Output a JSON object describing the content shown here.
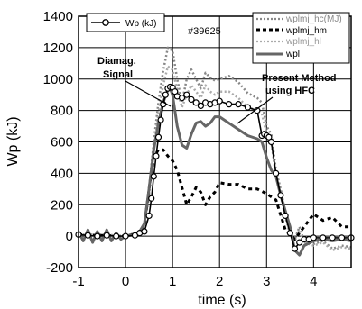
{
  "chart_data": {
    "type": "line",
    "title": "",
    "shot_label": "#39625",
    "xlabel": "time (s)",
    "ylabel": "Wp (kJ)",
    "xlim": [
      -1,
      4.8
    ],
    "ylim": [
      -200,
      1400
    ],
    "xticks": [
      -1,
      0,
      1,
      2,
      3,
      4
    ],
    "yticks": [
      -200,
      0,
      200,
      400,
      600,
      800,
      1000,
      1200,
      1400
    ],
    "grid": true,
    "legend_placement": "top",
    "annotations": [
      {
        "id": "diamag",
        "text": [
          "Diamag.",
          "Signal"
        ]
      },
      {
        "id": "present",
        "text": [
          "Present Method",
          "using HFC"
        ]
      }
    ],
    "series": [
      {
        "name": "Wp (kJ)",
        "color": "#000000",
        "style": "solid-circle",
        "x": [
          -1.0,
          -0.8,
          -0.6,
          -0.4,
          -0.2,
          0.0,
          0.2,
          0.3,
          0.4,
          0.5,
          0.55,
          0.6,
          0.65,
          0.7,
          0.75,
          0.8,
          0.85,
          0.9,
          0.95,
          1.0,
          1.05,
          1.1,
          1.2,
          1.3,
          1.4,
          1.5,
          1.6,
          1.7,
          1.8,
          1.9,
          2.0,
          2.2,
          2.4,
          2.6,
          2.8,
          2.9,
          2.95,
          3.0,
          3.05,
          3.1,
          3.2,
          3.3,
          3.4,
          3.5,
          3.6,
          3.7,
          3.8,
          3.9,
          4.0,
          4.2,
          4.4,
          4.6,
          4.8
        ],
        "y": [
          10,
          5,
          0,
          5,
          0,
          0,
          5,
          20,
          30,
          130,
          240,
          380,
          510,
          630,
          740,
          840,
          900,
          940,
          950,
          945,
          920,
          890,
          880,
          900,
          870,
          850,
          830,
          850,
          840,
          850,
          860,
          840,
          840,
          820,
          800,
          640,
          650,
          640,
          630,
          600,
          400,
          260,
          130,
          20,
          -80,
          -40,
          -20,
          -20,
          -10,
          -10,
          -10,
          -10,
          -10
        ]
      },
      {
        "name": "wplmj_hc(MJ)",
        "color": "#888888",
        "style": "cross-dots",
        "x": [
          -1.0,
          -0.5,
          0.0,
          0.3,
          0.4,
          0.5,
          0.6,
          0.7,
          0.8,
          0.9,
          1.0,
          1.1,
          1.2,
          1.3,
          1.4,
          1.5,
          1.6,
          1.7,
          1.8,
          1.9,
          2.0,
          2.2,
          2.4,
          2.6,
          2.8,
          2.9,
          3.0,
          3.1,
          3.2,
          3.3,
          3.4,
          3.5,
          3.6,
          3.7,
          3.8,
          4.0,
          4.2,
          4.4,
          4.6,
          4.8
        ],
        "y": [
          10,
          10,
          0,
          30,
          80,
          300,
          600,
          850,
          1050,
          1200,
          1180,
          1000,
          850,
          1000,
          1060,
          1000,
          940,
          1040,
          1010,
          990,
          1000,
          1020,
          980,
          910,
          880,
          850,
          700,
          650,
          420,
          300,
          150,
          20,
          -20,
          60,
          -30,
          -50,
          -30,
          -80,
          -60,
          -70
        ]
      },
      {
        "name": "wplmj_hm",
        "color": "#000000",
        "style": "dash",
        "x": [
          -1.0,
          -0.5,
          0.0,
          0.3,
          0.4,
          0.5,
          0.6,
          0.7,
          0.8,
          0.9,
          1.0,
          1.1,
          1.2,
          1.3,
          1.4,
          1.5,
          1.6,
          1.7,
          1.8,
          1.9,
          2.0,
          2.2,
          2.4,
          2.6,
          2.8,
          3.0,
          3.2,
          3.4,
          3.6,
          3.8,
          4.0,
          4.2,
          4.4,
          4.6,
          4.8
        ],
        "y": [
          10,
          5,
          0,
          20,
          60,
          300,
          500,
          550,
          550,
          510,
          480,
          420,
          310,
          200,
          250,
          310,
          280,
          200,
          250,
          280,
          340,
          330,
          330,
          300,
          300,
          270,
          230,
          40,
          -20,
          60,
          140,
          100,
          120,
          60,
          60
        ]
      },
      {
        "name": "wplmj_hl",
        "color": "#aaaaaa",
        "style": "cross-dots",
        "x": [
          -1.0,
          -0.5,
          0.0,
          0.3,
          0.4,
          0.5,
          0.6,
          0.7,
          0.8,
          0.9,
          1.0,
          1.1,
          1.2,
          1.3,
          1.4,
          1.5,
          1.6,
          1.7,
          1.8,
          1.9,
          2.0,
          2.2,
          2.4,
          2.6,
          2.8,
          2.9,
          3.0,
          3.1,
          3.2,
          3.3,
          3.4,
          3.5,
          3.6,
          3.7,
          3.8,
          4.0,
          4.2,
          4.4,
          4.6,
          4.8
        ],
        "y": [
          10,
          5,
          0,
          20,
          70,
          250,
          550,
          780,
          960,
          1080,
          1060,
          930,
          820,
          900,
          960,
          920,
          880,
          960,
          920,
          900,
          920,
          920,
          880,
          820,
          800,
          780,
          650,
          600,
          380,
          260,
          120,
          10,
          -30,
          40,
          -40,
          -60,
          -40,
          -90,
          -70,
          -80
        ]
      },
      {
        "name": "wpl",
        "color": "#666666",
        "style": "thick",
        "x": [
          -1.0,
          -0.9,
          -0.8,
          -0.7,
          -0.6,
          -0.5,
          -0.4,
          -0.3,
          -0.2,
          -0.1,
          0.0,
          0.2,
          0.3,
          0.4,
          0.5,
          0.6,
          0.7,
          0.8,
          0.9,
          0.95,
          1.0,
          1.05,
          1.1,
          1.2,
          1.3,
          1.4,
          1.5,
          1.6,
          1.7,
          1.8,
          1.9,
          2.0,
          2.2,
          2.4,
          2.6,
          2.8,
          2.9,
          3.0,
          3.1,
          3.2,
          3.3,
          3.4,
          3.5,
          3.6,
          3.7,
          3.8,
          4.0,
          4.2,
          4.4,
          4.6,
          4.8
        ],
        "y": [
          30,
          -30,
          40,
          -40,
          30,
          -30,
          40,
          -30,
          20,
          -20,
          0,
          10,
          30,
          80,
          300,
          550,
          720,
          850,
          930,
          940,
          900,
          800,
          700,
          580,
          560,
          650,
          720,
          730,
          700,
          720,
          760,
          760,
          720,
          680,
          640,
          620,
          600,
          500,
          420,
          380,
          260,
          160,
          60,
          -90,
          -120,
          -60,
          -30,
          -20,
          -30,
          -20,
          -30
        ]
      }
    ]
  }
}
